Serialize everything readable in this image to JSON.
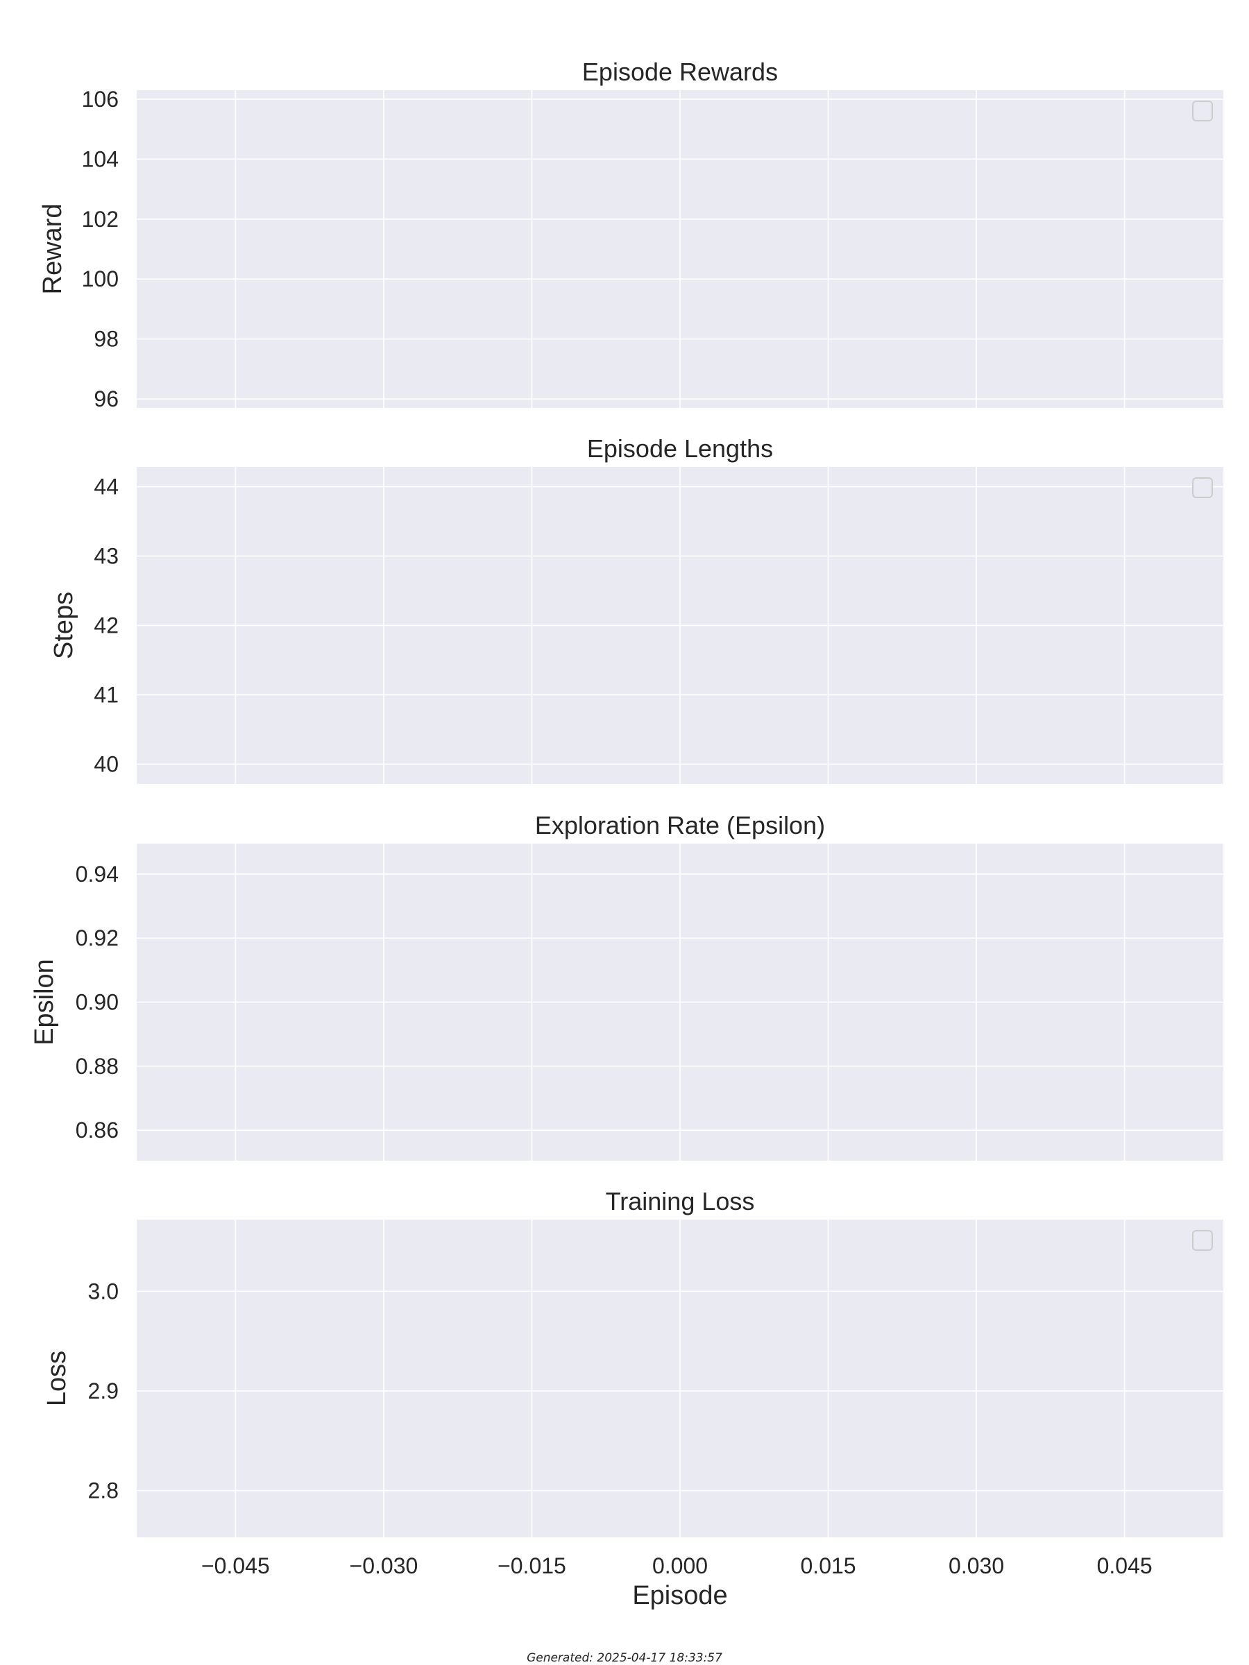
{
  "chart_data": [
    {
      "type": "line",
      "title": "Episode Rewards",
      "ylabel": "Reward",
      "xlabel": "",
      "ylim": [
        95.7,
        106.3
      ],
      "yticks": [
        96,
        98,
        100,
        102,
        104,
        106
      ],
      "ytick_labels": [
        "96",
        "98",
        "100",
        "102",
        "104",
        "106"
      ],
      "xlim": [
        -0.055,
        0.055
      ],
      "xticks": [
        -0.045,
        -0.03,
        -0.015,
        0.0,
        0.015,
        0.03,
        0.045
      ],
      "series": [],
      "legend": "top-right",
      "grid": true
    },
    {
      "type": "line",
      "title": "Episode Lengths",
      "ylabel": "Steps",
      "xlabel": "",
      "ylim": [
        39.715,
        44.285
      ],
      "yticks": [
        40,
        41,
        42,
        43,
        44
      ],
      "ytick_labels": [
        "40",
        "41",
        "42",
        "43",
        "44"
      ],
      "xlim": [
        -0.055,
        0.055
      ],
      "xticks": [
        -0.045,
        -0.03,
        -0.015,
        0.0,
        0.015,
        0.03,
        0.045
      ],
      "series": [],
      "legend": "top-right",
      "grid": true
    },
    {
      "type": "line",
      "title": "Exploration Rate (Epsilon)",
      "ylabel": "Epsilon",
      "xlabel": "",
      "ylim": [
        0.8505,
        0.9495
      ],
      "yticks": [
        0.86,
        0.88,
        0.9,
        0.92,
        0.94
      ],
      "ytick_labels": [
        "0.86",
        "0.88",
        "0.90",
        "0.92",
        "0.94"
      ],
      "xlim": [
        -0.055,
        0.055
      ],
      "xticks": [
        -0.045,
        -0.03,
        -0.015,
        0.0,
        0.015,
        0.03,
        0.045
      ],
      "series": [],
      "legend": "none",
      "grid": true
    },
    {
      "type": "line",
      "title": "Training Loss",
      "ylabel": "Loss",
      "xlabel": "Episode",
      "ylim": [
        2.753,
        3.072
      ],
      "yticks": [
        2.8,
        2.9,
        3.0
      ],
      "ytick_labels": [
        "2.8",
        "2.9",
        "3.0"
      ],
      "xlim": [
        -0.055,
        0.055
      ],
      "xticks": [
        -0.045,
        -0.03,
        -0.015,
        0.0,
        0.015,
        0.03,
        0.045
      ],
      "xtick_labels": [
        "−0.045",
        "−0.030",
        "−0.015",
        "0.000",
        "0.015",
        "0.030",
        "0.045"
      ],
      "series": [],
      "legend": "top-right",
      "grid": true
    }
  ],
  "colors": {
    "axes_bg": "#eaeaf2",
    "grid": "#ffffff",
    "text": "#262626",
    "legend_edge": "#cccccc"
  },
  "footer": {
    "text": "Generated: 2025-04-17 18:33:57"
  }
}
